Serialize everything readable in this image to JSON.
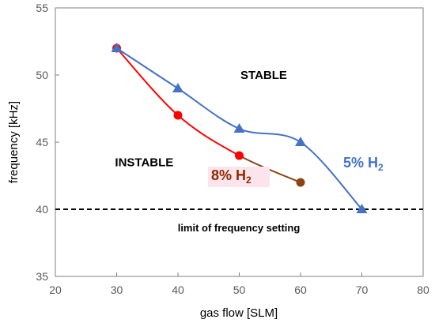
{
  "chart_data": {
    "type": "line",
    "xlabel": "gas flow [SLM]",
    "ylabel": "frequency [kHz]",
    "xlim": [
      20,
      80
    ],
    "ylim": [
      35,
      55
    ],
    "xticks": [
      20,
      30,
      40,
      50,
      60,
      70,
      80
    ],
    "yticks": [
      35,
      40,
      45,
      50,
      55
    ],
    "grid": false,
    "series": [
      {
        "name_main": "5% H",
        "name_sub": "2",
        "color": "#4472C4",
        "marker": "triangle",
        "x": [
          30,
          40,
          50,
          60,
          70
        ],
        "y": [
          52,
          49,
          46,
          45,
          40
        ]
      },
      {
        "name_main": "8% H",
        "name_sub": "2",
        "color": "#E8232B",
        "label_color": "#8B2A00",
        "label_highlight": "#FCE4EC",
        "marker": "circle",
        "x": [
          30,
          40,
          50,
          60
        ],
        "y": [
          52,
          47,
          44,
          42
        ],
        "point_colors": [
          "#FF0000",
          "#FF0000",
          "#FF0000",
          "#8B4513"
        ],
        "segment_colors": [
          "#FF0000",
          "#FF0000",
          "#8B4513"
        ]
      }
    ],
    "reference_line": {
      "y": 40,
      "label": "limit of frequency setting",
      "style": "dashed",
      "color": "#000000"
    },
    "annotations": [
      {
        "text": "STABLE",
        "x": 54,
        "y": 50
      },
      {
        "text": "INSTABLE",
        "x": 34.5,
        "y": 43.5
      }
    ]
  }
}
